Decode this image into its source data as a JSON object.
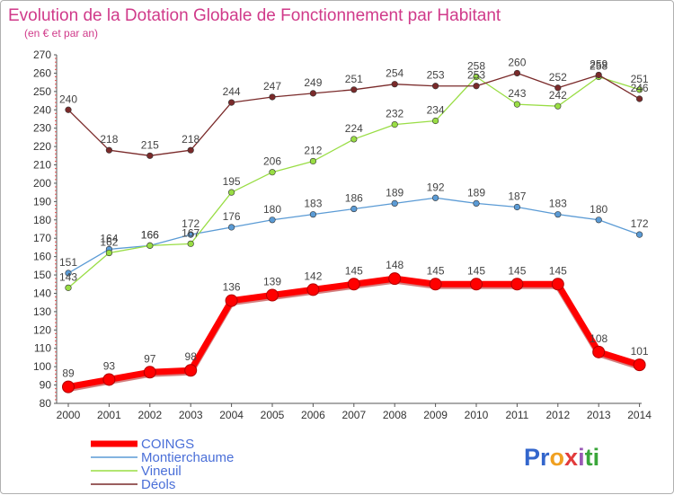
{
  "chart_data": {
    "type": "line",
    "title": "Evolution de la Dotation Globale de Fonctionnement par Habitant",
    "subtitle": "(en € et par an)",
    "xlabel": "",
    "ylabel": "",
    "ylim": [
      80,
      270
    ],
    "ytick_step": 10,
    "grid": false,
    "legend_position": "bottom-left",
    "categories": [
      "2000",
      "2001",
      "2002",
      "2003",
      "2004",
      "2005",
      "2006",
      "2007",
      "2008",
      "2009",
      "2010",
      "2011",
      "2012",
      "2013",
      "2014"
    ],
    "series": [
      {
        "name": "COINGS",
        "color": "#ff0000",
        "emphasis": true,
        "values": [
          89,
          93,
          97,
          98,
          136,
          139,
          142,
          145,
          148,
          145,
          145,
          145,
          145,
          108,
          101
        ]
      },
      {
        "name": "Montierchaume",
        "color": "#5b9bd5",
        "values": [
          151,
          164,
          166,
          172,
          176,
          180,
          183,
          186,
          189,
          192,
          189,
          187,
          183,
          180,
          172
        ]
      },
      {
        "name": "Vineuil",
        "color": "#99dd44",
        "values": [
          143,
          162,
          166,
          167,
          195,
          206,
          212,
          224,
          232,
          234,
          258,
          243,
          242,
          258,
          251
        ]
      },
      {
        "name": "Déols",
        "color": "#7a2a2a",
        "values": [
          240,
          218,
          215,
          218,
          244,
          247,
          249,
          251,
          254,
          253,
          253,
          260,
          252,
          259,
          246
        ]
      }
    ]
  },
  "brand": {
    "name": "Proxiti",
    "letters": [
      "P",
      "r",
      "o",
      "x",
      "i",
      "t",
      "i"
    ],
    "colors": [
      "#3366cc",
      "#3366cc",
      "#f0a020",
      "#e23b3b",
      "#9b59b6",
      "#3aa63a",
      "#3aa63a"
    ]
  }
}
